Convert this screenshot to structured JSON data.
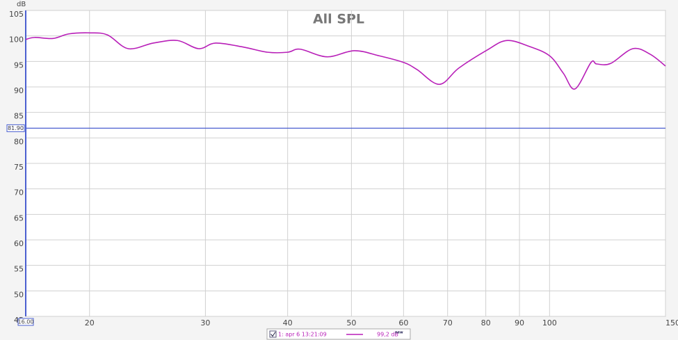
{
  "chart_data": {
    "type": "line",
    "title": "All SPL",
    "y_label": "dB",
    "log_x": true,
    "grid": true,
    "xlim": [
      16,
      150
    ],
    "ylim": [
      45,
      105
    ],
    "xticks": [
      {
        "value": 16,
        "label": "16.00"
      },
      20,
      30,
      40,
      50,
      60,
      70,
      80,
      90,
      100,
      {
        "value": 150,
        "label": "150 Hz"
      }
    ],
    "yticks": [
      45,
      50,
      55,
      60,
      65,
      70,
      75,
      80,
      85,
      90,
      95,
      100,
      105
    ],
    "cursor": {
      "value": 81.9,
      "label": "81.90",
      "color": "#4a5fd0"
    },
    "x": [
      16,
      16.5,
      17.6,
      18.6,
      20,
      21.3,
      22.9,
      25,
      27.2,
      29.3,
      31.1,
      34.3,
      37.3,
      40,
      41.8,
      45.9,
      50.5,
      55.1,
      60,
      62.9,
      68,
      72.8,
      80.3,
      86,
      92.9,
      100,
      104.9,
      109.3,
      115.6,
      117.9,
      123.8,
      133.8,
      142.2,
      150
    ],
    "series": [
      {
        "name": "1: apr 6 13:21:09",
        "color": "#b81fb8",
        "legend_value": "99,2 dB",
        "legend_tag": "new",
        "values": [
          99.3,
          99.7,
          99.5,
          100.4,
          100.6,
          100.2,
          97.5,
          98.6,
          99.1,
          97.5,
          98.6,
          97.8,
          96.8,
          96.8,
          97.4,
          95.9,
          97.1,
          96.1,
          94.8,
          93.4,
          90.5,
          93.7,
          97.2,
          99.1,
          98.0,
          96.1,
          92.7,
          89.6,
          94.8,
          94.5,
          94.6,
          97.5,
          96.4,
          94.1
        ]
      }
    ]
  }
}
